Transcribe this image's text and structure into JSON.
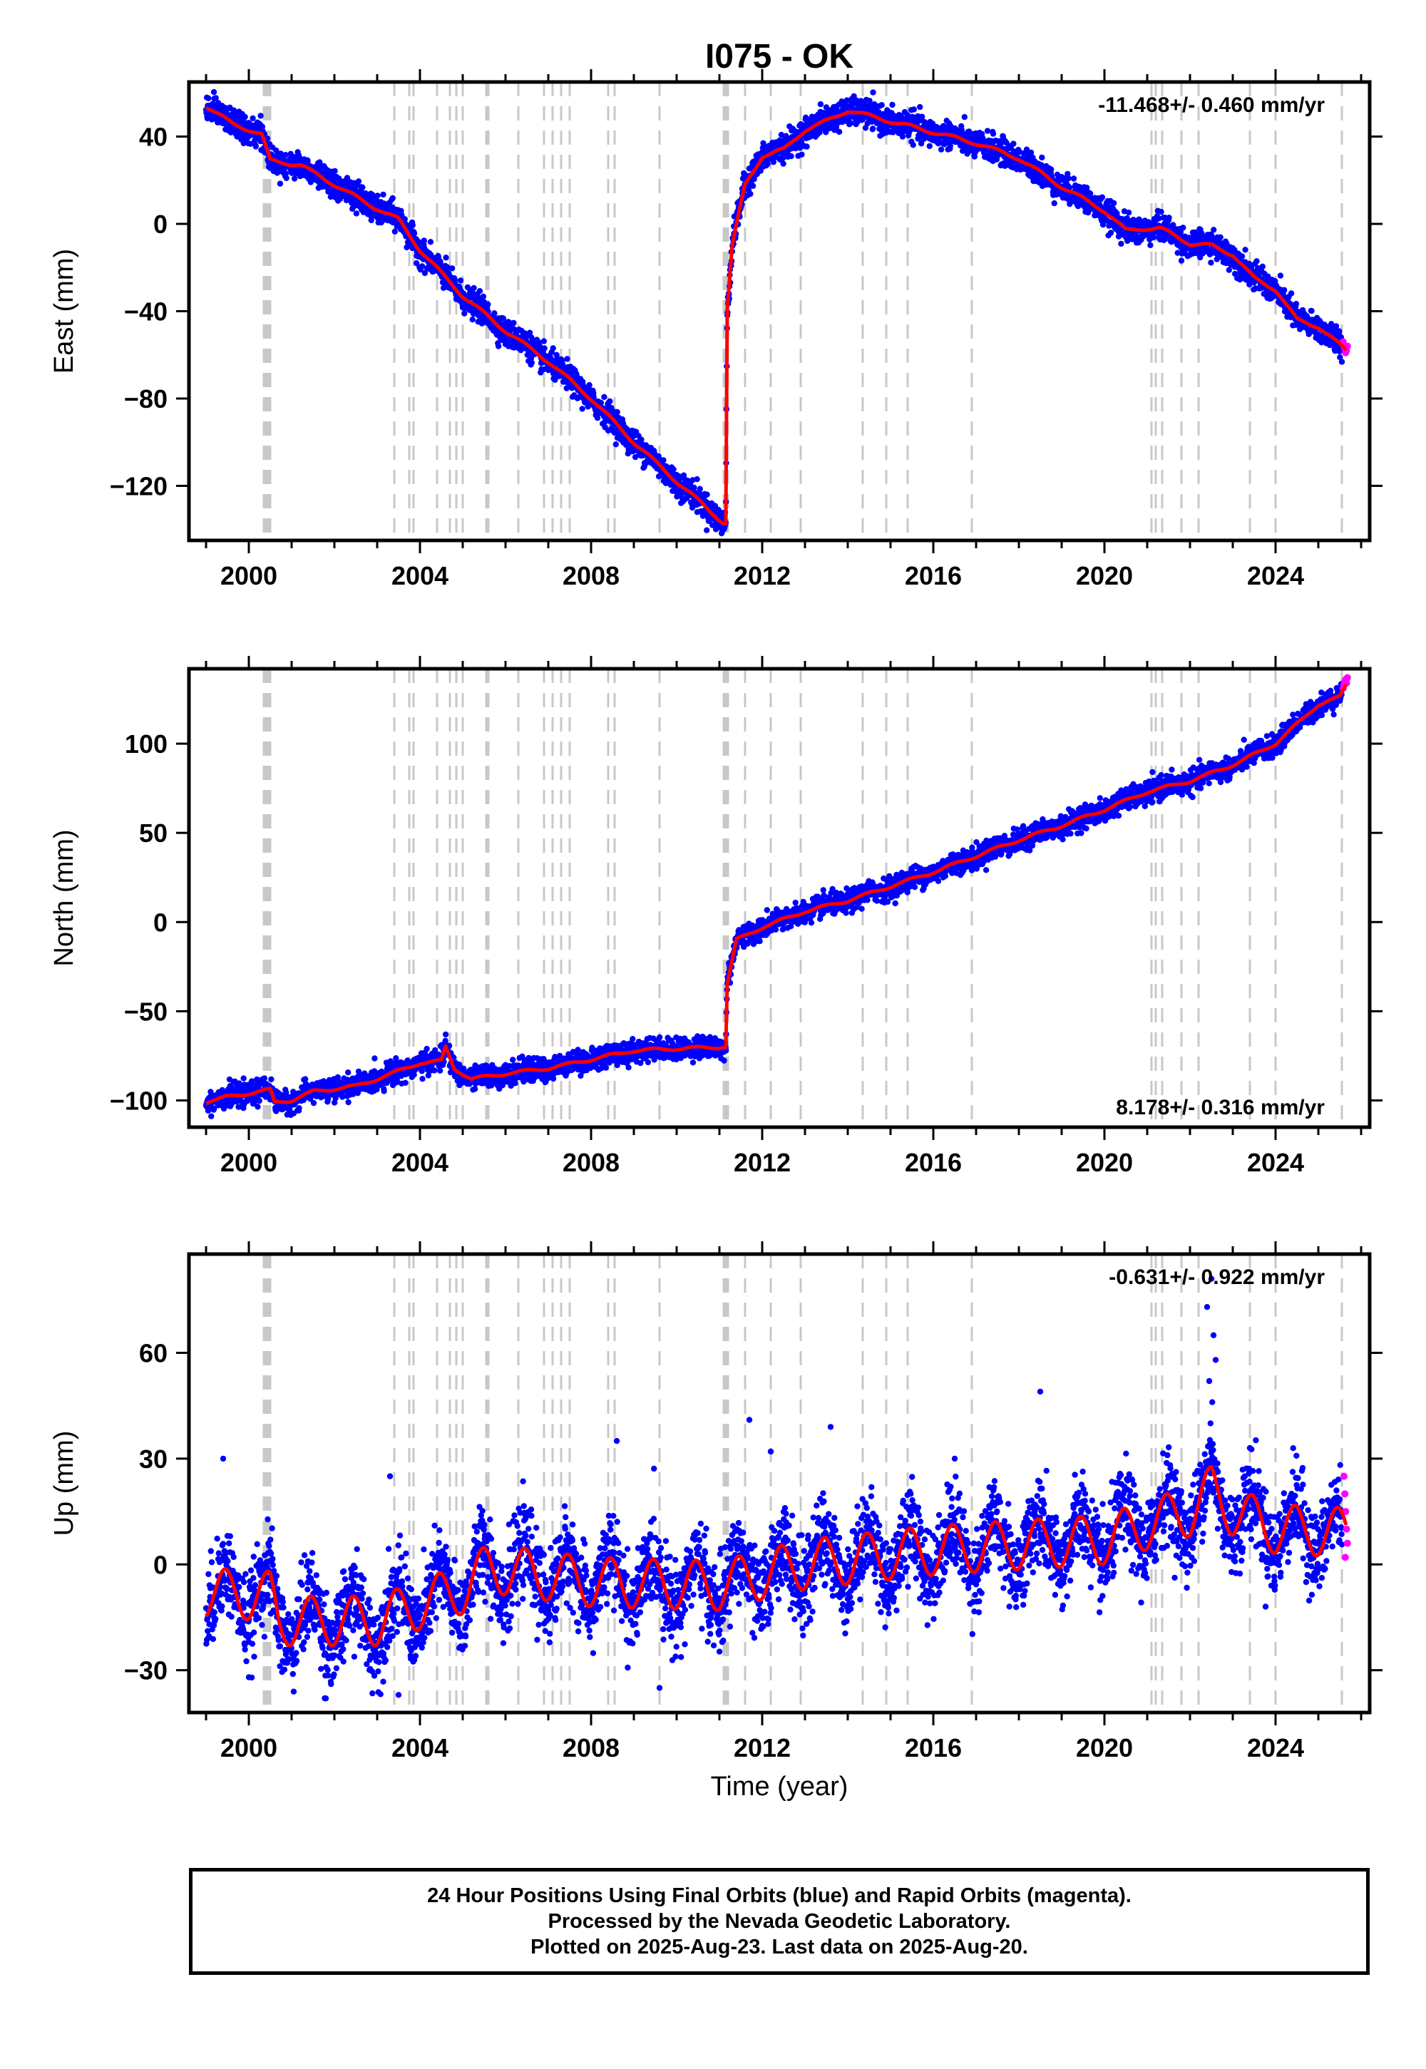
{
  "title": "I075 - OK",
  "xlabel": "Time (year)",
  "footer_lines": [
    "24 Hour Positions Using Final Orbits (blue) and Rapid Orbits (magenta).",
    "Processed by the Nevada Geodetic Laboratory.",
    "Plotted on 2025-Aug-23. Last data on 2025-Aug-20."
  ],
  "colors": {
    "final": "#0000ff",
    "rapid": "#ff00ff",
    "model": "#ff0000",
    "event_lines": "#c8c8c8"
  },
  "chart_data": [
    {
      "type": "scatter",
      "component": "east",
      "ylabel": "East (mm)",
      "rate_label": "-11.468+/- 0.460 mm/yr",
      "xlim": [
        1998.6,
        2026.2
      ],
      "ylim": [
        -145,
        65
      ],
      "xticks": [
        2000,
        2004,
        2008,
        2012,
        2016,
        2020,
        2024
      ],
      "yticks": [
        40,
        0,
        -40,
        -80,
        -120
      ],
      "ytick_labels": [
        "40",
        "0",
        "−40",
        "−80",
        "−120"
      ],
      "model_trend": [
        {
          "x": 1999.0,
          "y": 54
        },
        {
          "x": 1999.6,
          "y": 46
        },
        {
          "x": 2000.3,
          "y": 41
        },
        {
          "x": 2000.5,
          "y": 29
        },
        {
          "x": 2001.2,
          "y": 27
        },
        {
          "x": 2002.0,
          "y": 18
        },
        {
          "x": 2002.8,
          "y": 9
        },
        {
          "x": 2003.5,
          "y": 2
        },
        {
          "x": 2004.0,
          "y": -12
        },
        {
          "x": 2005.0,
          "y": -33
        },
        {
          "x": 2006.0,
          "y": -49
        },
        {
          "x": 2007.0,
          "y": -63
        },
        {
          "x": 2008.0,
          "y": -80
        },
        {
          "x": 2009.0,
          "y": -100
        },
        {
          "x": 2010.0,
          "y": -118
        },
        {
          "x": 2011.1,
          "y": -137
        },
        {
          "x": 2011.15,
          "y": -137
        },
        {
          "x": 2011.18,
          "y": -40
        },
        {
          "x": 2011.3,
          "y": -10
        },
        {
          "x": 2011.6,
          "y": 18
        },
        {
          "x": 2012.0,
          "y": 31
        },
        {
          "x": 2012.5,
          "y": 34
        },
        {
          "x": 2013.0,
          "y": 43
        },
        {
          "x": 2013.5,
          "y": 47
        },
        {
          "x": 2014.0,
          "y": 52
        },
        {
          "x": 2015.0,
          "y": 47
        },
        {
          "x": 2016.0,
          "y": 42
        },
        {
          "x": 2017.0,
          "y": 37
        },
        {
          "x": 2018.0,
          "y": 30
        },
        {
          "x": 2019.0,
          "y": 17
        },
        {
          "x": 2020.0,
          "y": 6
        },
        {
          "x": 2020.5,
          "y": -3
        },
        {
          "x": 2021.0,
          "y": -2
        },
        {
          "x": 2021.3,
          "y": -2
        },
        {
          "x": 2022.0,
          "y": -9
        },
        {
          "x": 2022.5,
          "y": -10
        },
        {
          "x": 2023.0,
          "y": -14
        },
        {
          "x": 2023.5,
          "y": -25
        },
        {
          "x": 2024.0,
          "y": -30
        },
        {
          "x": 2024.5,
          "y": -44
        },
        {
          "x": 2025.0,
          "y": -47
        },
        {
          "x": 2025.65,
          "y": -58
        }
      ],
      "seasonal_amplitude": 2,
      "scatter_spread": 3,
      "rapid_points": [
        {
          "x": 2025.58,
          "y": -54
        },
        {
          "x": 2025.6,
          "y": -56
        },
        {
          "x": 2025.62,
          "y": -57
        },
        {
          "x": 2025.64,
          "y": -59
        },
        {
          "x": 2025.66,
          "y": -58
        },
        {
          "x": 2025.68,
          "y": -56
        }
      ]
    },
    {
      "type": "scatter",
      "component": "north",
      "ylabel": "North (mm)",
      "rate_label": "8.178+/- 0.316 mm/yr",
      "xlim": [
        1998.6,
        2026.2
      ],
      "ylim": [
        -115,
        142
      ],
      "xticks": [
        2000,
        2004,
        2008,
        2012,
        2016,
        2020,
        2024
      ],
      "yticks": [
        100,
        50,
        0,
        -50,
        -100
      ],
      "ytick_labels": [
        "100",
        "50",
        "0",
        "−50",
        "−100"
      ],
      "model_trend": [
        {
          "x": 1999.0,
          "y": -101
        },
        {
          "x": 1999.5,
          "y": -98
        },
        {
          "x": 2000.5,
          "y": -94
        },
        {
          "x": 2000.6,
          "y": -101
        },
        {
          "x": 2001.0,
          "y": -100
        },
        {
          "x": 2001.5,
          "y": -95
        },
        {
          "x": 2002.5,
          "y": -92
        },
        {
          "x": 2003.0,
          "y": -88
        },
        {
          "x": 2004.0,
          "y": -79
        },
        {
          "x": 2004.5,
          "y": -78
        },
        {
          "x": 2004.6,
          "y": -70
        },
        {
          "x": 2004.8,
          "y": -82
        },
        {
          "x": 2005.2,
          "y": -88
        },
        {
          "x": 2006.0,
          "y": -85
        },
        {
          "x": 2007.0,
          "y": -82
        },
        {
          "x": 2008.0,
          "y": -77
        },
        {
          "x": 2009.0,
          "y": -72
        },
        {
          "x": 2010.0,
          "y": -71
        },
        {
          "x": 2011.1,
          "y": -70
        },
        {
          "x": 2011.15,
          "y": -70
        },
        {
          "x": 2011.18,
          "y": -35
        },
        {
          "x": 2011.4,
          "y": -10
        },
        {
          "x": 2012.0,
          "y": -3
        },
        {
          "x": 2013.0,
          "y": 6
        },
        {
          "x": 2014.0,
          "y": 12
        },
        {
          "x": 2015.0,
          "y": 20
        },
        {
          "x": 2016.0,
          "y": 28
        },
        {
          "x": 2017.0,
          "y": 37
        },
        {
          "x": 2018.0,
          "y": 46
        },
        {
          "x": 2019.0,
          "y": 54
        },
        {
          "x": 2020.0,
          "y": 63
        },
        {
          "x": 2021.0,
          "y": 73
        },
        {
          "x": 2022.0,
          "y": 79
        },
        {
          "x": 2023.0,
          "y": 88
        },
        {
          "x": 2024.0,
          "y": 100
        },
        {
          "x": 2025.0,
          "y": 122
        },
        {
          "x": 2025.5,
          "y": 126
        },
        {
          "x": 2025.65,
          "y": 133
        }
      ],
      "seasonal_amplitude": 2,
      "scatter_spread": 3,
      "rapid_points": [
        {
          "x": 2025.58,
          "y": 131
        },
        {
          "x": 2025.6,
          "y": 133
        },
        {
          "x": 2025.62,
          "y": 135
        },
        {
          "x": 2025.64,
          "y": 136
        },
        {
          "x": 2025.66,
          "y": 134
        },
        {
          "x": 2025.68,
          "y": 137
        }
      ]
    },
    {
      "type": "scatter",
      "component": "up",
      "ylabel": "Up (mm)",
      "rate_label": "-0.631+/- 0.922 mm/yr",
      "xlim": [
        1998.6,
        2026.2
      ],
      "ylim": [
        -42,
        88
      ],
      "xticks": [
        2000,
        2004,
        2008,
        2012,
        2016,
        2020,
        2024
      ],
      "yticks": [
        60,
        30,
        0,
        -30
      ],
      "ytick_labels": [
        "60",
        "30",
        "0",
        "−30"
      ],
      "model_trend": [
        {
          "x": 1999.0,
          "y": -8
        },
        {
          "x": 2000.5,
          "y": -9
        },
        {
          "x": 2000.7,
          "y": -16
        },
        {
          "x": 2003.0,
          "y": -16
        },
        {
          "x": 2005.0,
          "y": -7
        },
        {
          "x": 2005.6,
          "y": -1
        },
        {
          "x": 2008.0,
          "y": -5
        },
        {
          "x": 2011.0,
          "y": -6
        },
        {
          "x": 2013.0,
          "y": 0
        },
        {
          "x": 2016.0,
          "y": 4
        },
        {
          "x": 2020.0,
          "y": 7
        },
        {
          "x": 2021.2,
          "y": 12
        },
        {
          "x": 2022.0,
          "y": 15
        },
        {
          "x": 2022.5,
          "y": 21
        },
        {
          "x": 2023.0,
          "y": 15
        },
        {
          "x": 2024.0,
          "y": 10
        },
        {
          "x": 2025.65,
          "y": 9
        }
      ],
      "seasonal_amplitude": 7,
      "scatter_spread": 6,
      "outliers": [
        {
          "x": 1999.4,
          "y": 30
        },
        {
          "x": 2000.0,
          "y": -32
        },
        {
          "x": 2001.8,
          "y": -38
        },
        {
          "x": 2003.3,
          "y": 25
        },
        {
          "x": 2003.5,
          "y": -37
        },
        {
          "x": 2008.6,
          "y": 35
        },
        {
          "x": 2009.6,
          "y": -35
        },
        {
          "x": 2011.7,
          "y": 41
        },
        {
          "x": 2013.6,
          "y": 39
        },
        {
          "x": 2018.5,
          "y": 49
        },
        {
          "x": 2022.4,
          "y": 73
        },
        {
          "x": 2022.5,
          "y": 81
        },
        {
          "x": 2022.55,
          "y": 65
        },
        {
          "x": 2022.6,
          "y": 58
        },
        {
          "x": 2022.45,
          "y": 52
        },
        {
          "x": 2022.52,
          "y": 46
        },
        {
          "x": 2022.48,
          "y": 40
        },
        {
          "x": 2023.4,
          "y": 33
        },
        {
          "x": 2012.2,
          "y": 32
        },
        {
          "x": 2016.5,
          "y": 30
        }
      ],
      "rapid_points": [
        {
          "x": 2025.6,
          "y": 25
        },
        {
          "x": 2025.62,
          "y": 20
        },
        {
          "x": 2025.64,
          "y": 15
        },
        {
          "x": 2025.66,
          "y": 10
        },
        {
          "x": 2025.68,
          "y": 6
        },
        {
          "x": 2025.63,
          "y": 2
        }
      ]
    }
  ],
  "event_lines_years": [
    2000.35,
    2000.38,
    2000.42,
    2000.45,
    2000.5,
    2003.4,
    2003.75,
    2003.85,
    2004.4,
    2004.7,
    2004.85,
    2005.0,
    2005.55,
    2005.6,
    2006.3,
    2006.9,
    2007.1,
    2007.3,
    2007.5,
    2008.4,
    2008.55,
    2009.6,
    2011.1,
    2011.15,
    2011.2,
    2011.6,
    2012.2,
    2012.9,
    2014.35,
    2014.9,
    2015.4,
    2016.9,
    2021.1,
    2021.2,
    2021.35,
    2021.8,
    2022.2,
    2023.4,
    2024.0,
    2025.55
  ]
}
